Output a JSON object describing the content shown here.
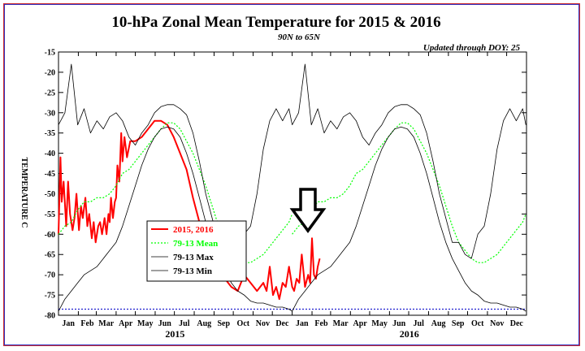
{
  "chart_data": {
    "type": "line",
    "title": "10-hPa Zonal Mean Temperature for 2015 & 2016",
    "subtitle": "90N to 65N",
    "update_note": "Updated through DOY:  25",
    "ylabel": "TEMPERATURE C",
    "ylim": [
      -80,
      -15
    ],
    "yticks": [
      -15,
      -20,
      -25,
      -30,
      -35,
      -40,
      -45,
      -50,
      -55,
      -60,
      -65,
      -70,
      -75,
      -80
    ],
    "x_months": [
      "Jan",
      "Feb",
      "Mar",
      "Apr",
      "May",
      "Jun",
      "Jul",
      "Aug",
      "Sep",
      "Oct",
      "Nov",
      "Dec",
      "Jan",
      "Feb",
      "Mar",
      "Apr",
      "May",
      "Jun",
      "Jul",
      "Aug",
      "Sep",
      "Oct",
      "Nov",
      "Dec"
    ],
    "x_years": [
      "2015",
      "2016"
    ],
    "xlim_days": [
      0,
      731
    ],
    "reference_line": -78.5,
    "legend_position": "lower-left",
    "series": [
      {
        "name": "2015, 2016",
        "color": "#ff0000",
        "x": [
          0,
          3,
          5,
          8,
          12,
          15,
          18,
          22,
          25,
          28,
          32,
          35,
          38,
          42,
          45,
          48,
          52,
          55,
          58,
          62,
          65,
          68,
          72,
          75,
          78,
          80,
          82,
          85,
          88,
          90,
          92,
          95,
          98,
          100,
          103,
          107,
          112,
          120,
          130,
          140,
          150,
          160,
          170,
          180,
          190,
          200,
          210,
          220,
          230,
          240,
          250,
          260,
          270,
          280,
          290,
          300,
          310,
          320,
          325,
          330,
          335,
          340,
          345,
          350,
          355,
          360,
          365,
          368,
          372,
          376,
          380,
          385,
          390,
          393,
          396,
          399,
          402,
          405,
          408
        ],
        "values": [
          -60,
          -41,
          -52,
          -47,
          -58,
          -47,
          -55,
          -59,
          -56,
          -50,
          -59,
          -53,
          -56,
          -51,
          -58,
          -55,
          -61,
          -57,
          -62,
          -58,
          -57,
          -60,
          -56,
          -60,
          -55,
          -57,
          -51,
          -56,
          -52,
          -51,
          -43,
          -47,
          -35,
          -42,
          -36,
          -41,
          -37,
          -37,
          -36,
          -34,
          -32,
          -32,
          -33,
          -36,
          -40,
          -44,
          -51,
          -57,
          -61,
          -67,
          -70,
          -71,
          -73,
          -74,
          -70,
          -72,
          -74,
          -72,
          -74,
          -68,
          -75,
          -73,
          -76,
          -72,
          -73,
          -68,
          -73,
          -74,
          -71,
          -72,
          -65,
          -73,
          -70,
          -72,
          -61,
          -70,
          -71,
          -68,
          -66
        ]
      },
      {
        "name": "79-13 Mean",
        "color": "#00ff00",
        "x": [
          0,
          10,
          20,
          30,
          40,
          50,
          60,
          70,
          80,
          90,
          100,
          110,
          120,
          130,
          140,
          150,
          160,
          170,
          180,
          190,
          200,
          210,
          220,
          230,
          240,
          250,
          260,
          270,
          280,
          290,
          300,
          310,
          320,
          330,
          340,
          350,
          360,
          365
        ],
        "values": [
          -60,
          -58,
          -57,
          -54,
          -52,
          -52,
          -51,
          -51,
          -50,
          -48,
          -45,
          -44,
          -42,
          -40,
          -38,
          -36,
          -34,
          -32.5,
          -32.5,
          -34,
          -37,
          -40,
          -44,
          -48,
          -53,
          -58,
          -62,
          -64,
          -66,
          -67,
          -67,
          -66,
          -65,
          -63,
          -61,
          -59,
          -57,
          -55
        ]
      },
      {
        "name": "79-13 Max",
        "color": "#000000",
        "x": [
          0,
          10,
          20,
          30,
          40,
          50,
          60,
          70,
          80,
          90,
          100,
          110,
          120,
          130,
          140,
          150,
          160,
          170,
          180,
          190,
          200,
          210,
          220,
          230,
          240,
          250,
          260,
          270,
          280,
          290,
          300,
          310,
          320,
          330,
          340,
          350,
          360,
          365
        ],
        "values": [
          -33,
          -30,
          -18,
          -33,
          -29,
          -35,
          -32,
          -34,
          -31,
          -30,
          -32,
          -36,
          -38,
          -35,
          -33,
          -30,
          -28.5,
          -28,
          -28,
          -29,
          -30.5,
          -35,
          -42,
          -50,
          -56,
          -62,
          -62,
          -65,
          -66,
          -60,
          -58,
          -50,
          -39,
          -32,
          -29,
          -32,
          -29,
          -33
        ]
      },
      {
        "name": "79-13 Min",
        "color": "#000000",
        "x": [
          0,
          10,
          20,
          30,
          40,
          50,
          60,
          70,
          80,
          90,
          100,
          110,
          120,
          130,
          140,
          150,
          160,
          170,
          180,
          190,
          200,
          210,
          220,
          230,
          240,
          250,
          260,
          270,
          280,
          290,
          300,
          310,
          320,
          330,
          340,
          350,
          360,
          365
        ],
        "values": [
          -79,
          -76,
          -74,
          -72,
          -70,
          -69,
          -68,
          -66,
          -64,
          -62,
          -58,
          -53,
          -48,
          -43,
          -39,
          -36,
          -34,
          -33.5,
          -34,
          -36,
          -40,
          -45,
          -51,
          -57,
          -62,
          -66,
          -69,
          -72,
          -74,
          -75,
          -76.5,
          -77,
          -77,
          -77.5,
          -78,
          -78,
          -78.5,
          -79
        ]
      }
    ]
  },
  "legend": {
    "items": [
      "2015, 2016",
      "79-13 Mean",
      "79-13 Max",
      "79-13 Min"
    ]
  },
  "annotation": "arrow pointing down at end of 2016 data"
}
